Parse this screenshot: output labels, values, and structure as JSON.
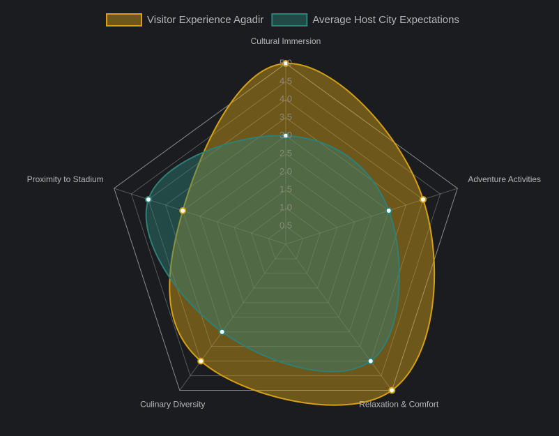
{
  "chart_data": {
    "type": "radar",
    "categories": [
      "Cultural Immersion",
      "Adventure Activities",
      "Relaxation & Comfort",
      "Culinary Diversity",
      "Proximity to Stadium"
    ],
    "series": [
      {
        "name": "Visitor Experience Agadir",
        "color": "#d4a017",
        "values": [
          5.0,
          4.0,
          5.0,
          4.0,
          3.0
        ]
      },
      {
        "name": "Average Host City Expectations",
        "color": "#2e8077",
        "values": [
          3.0,
          3.0,
          4.0,
          3.0,
          4.0
        ]
      }
    ],
    "rlim": [
      0,
      5
    ],
    "rticks": [
      0.5,
      {
        "value": 1,
        "label": "1.0"
      },
      1.5,
      {
        "value": 2,
        "label": "2.0"
      },
      2.5,
      {
        "value": 3,
        "label": "3.0"
      },
      3.5,
      {
        "value": 4,
        "label": "4.0"
      },
      4.5,
      {
        "value": 5,
        "label": "5.0"
      }
    ],
    "legend": "top"
  }
}
